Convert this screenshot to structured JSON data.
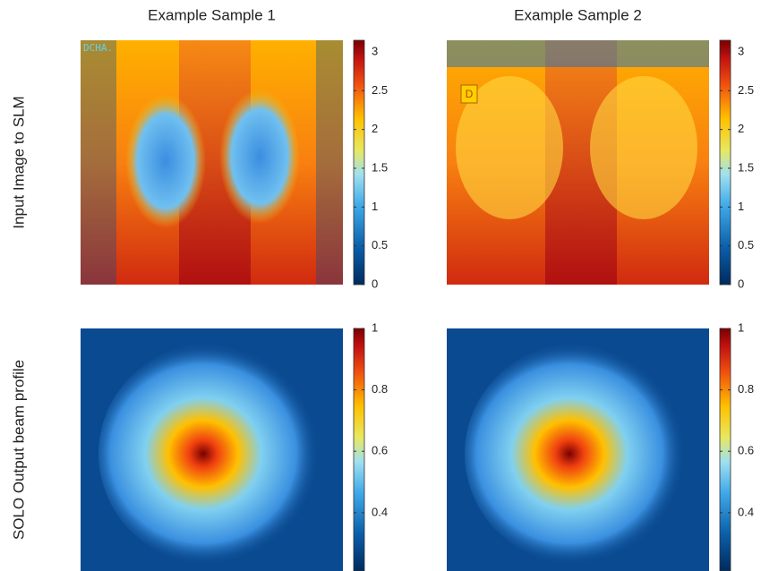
{
  "columns": [
    "Example Sample 1",
    "Example Sample 2"
  ],
  "rows": [
    {
      "label": "Input Image to SLM",
      "colorbar": {
        "lim": [
          0,
          3.15
        ],
        "ticks": [
          0,
          0.5,
          1,
          1.5,
          2,
          2.5,
          3
        ]
      }
    },
    {
      "label": "SOLO Output beam profile",
      "colorbar": {
        "lim": [
          0.21,
          1
        ],
        "ticks": [
          0.4,
          0.6,
          0.8,
          1
        ]
      }
    }
  ],
  "image_texts": [
    "DCHA.",
    "D"
  ]
}
